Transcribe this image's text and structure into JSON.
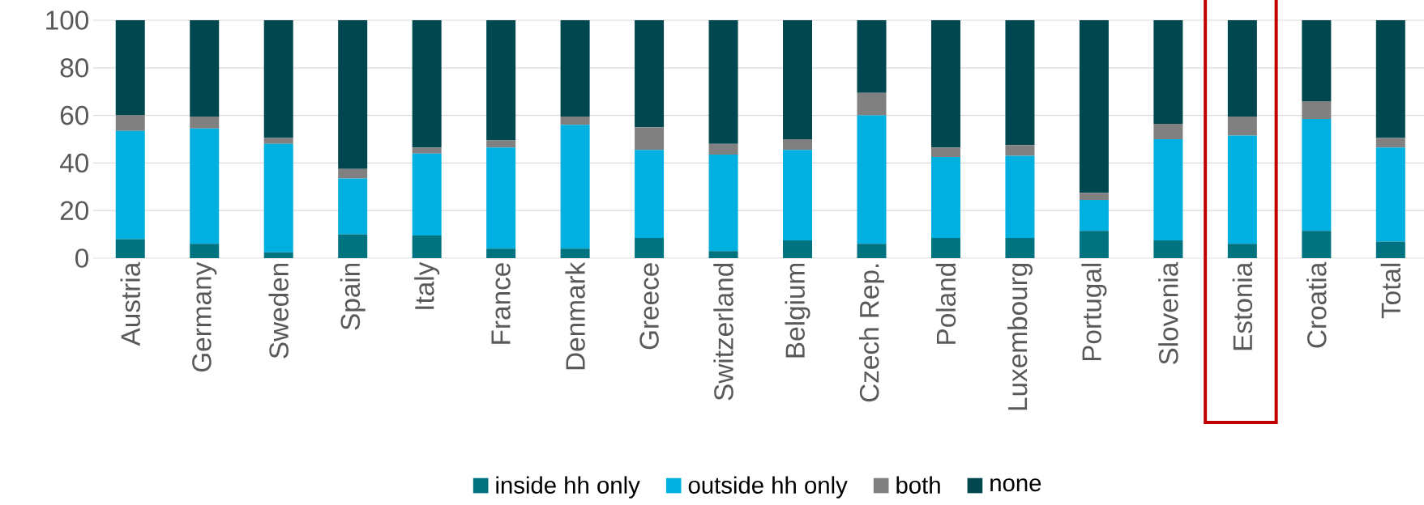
{
  "chart_data": {
    "type": "bar",
    "stacked": true,
    "categories": [
      "Austria",
      "Germany",
      "Sweden",
      "Spain",
      "Italy",
      "France",
      "Denmark",
      "Greece",
      "Switzerland",
      "Belgium",
      "Czech Rep.",
      "Poland",
      "Luxembourg",
      "Portugal",
      "Slovenia",
      "Estonia",
      "Croatia",
      "Total"
    ],
    "series": [
      {
        "name": "inside hh only",
        "color": "#007380",
        "values": [
          8,
          6,
          2.5,
          10,
          9.5,
          4,
          4,
          8.5,
          3,
          7.5,
          6,
          8.5,
          8.5,
          11.5,
          7.5,
          6,
          11.5,
          7
        ]
      },
      {
        "name": "outside hh only",
        "color": "#00b0e0",
        "values": [
          45.5,
          48.5,
          45.5,
          23.5,
          34.5,
          42.5,
          52,
          37,
          40.5,
          38,
          54,
          34,
          34.5,
          13,
          42.5,
          45.5,
          47,
          39.5
        ]
      },
      {
        "name": "both",
        "color": "#808080",
        "values": [
          6.5,
          5,
          2.5,
          4,
          2.5,
          3,
          3.5,
          9.5,
          4.5,
          4.5,
          9.5,
          4,
          4.5,
          3,
          6.5,
          8,
          7.5,
          4
        ]
      },
      {
        "name": "none",
        "color": "#00474f",
        "values": [
          40,
          40.5,
          49.5,
          62.5,
          53.5,
          50.5,
          40.5,
          45,
          52,
          50,
          30.5,
          53.5,
          52.5,
          72.5,
          43.5,
          40.5,
          34,
          49.5
        ]
      }
    ],
    "ylim": [
      0,
      100
    ],
    "yticks": [
      0,
      20,
      40,
      60,
      80,
      100
    ],
    "grid": "y",
    "legend": "bottom"
  }
}
